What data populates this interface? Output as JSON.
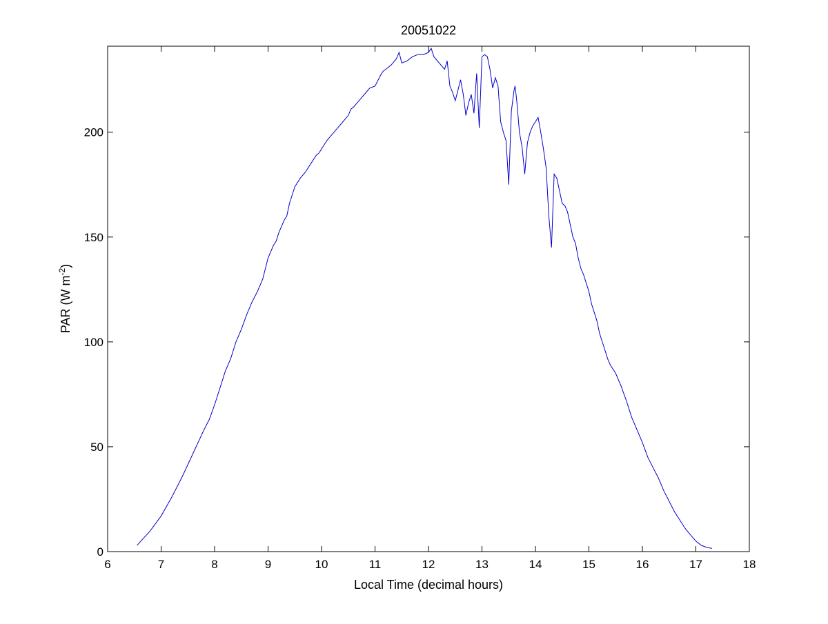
{
  "chart_data": {
    "type": "line",
    "title": "20051022",
    "xlabel": "Local Time (decimal hours)",
    "ylabel_main": "PAR (W m",
    "ylabel_sup": "-2",
    "ylabel_close": ")",
    "xlim": [
      6,
      18
    ],
    "ylim": [
      0,
      241
    ],
    "xticks": [
      6,
      7,
      8,
      9,
      10,
      11,
      12,
      13,
      14,
      15,
      16,
      17,
      18
    ],
    "xtick_labels": [
      "6",
      "7",
      "8",
      "9",
      "10",
      "11",
      "12",
      "13",
      "14",
      "15",
      "16",
      "17",
      "18"
    ],
    "yticks": [
      0,
      50,
      100,
      150,
      200
    ],
    "ytick_labels": [
      "0",
      "50",
      "100",
      "150",
      "200"
    ],
    "grid": false,
    "line_color": "#0000cc",
    "series": [
      {
        "x": [
          6.55,
          6.8,
          7.0,
          7.2,
          7.4,
          7.6,
          7.8,
          7.9,
          8.0,
          8.1,
          8.2,
          8.3,
          8.4,
          8.5,
          8.6,
          8.7,
          8.8,
          8.9,
          9.0,
          9.1,
          9.15,
          9.2,
          9.25,
          9.3,
          9.35,
          9.4,
          9.45,
          9.5,
          9.6,
          9.7,
          9.8,
          9.9,
          9.95,
          10.0,
          10.1,
          10.2,
          10.3,
          10.4,
          10.5,
          10.55,
          10.6,
          10.7,
          10.8,
          10.9,
          11.0,
          11.1,
          11.15,
          11.2,
          11.3,
          11.4,
          11.45,
          11.5,
          11.6,
          11.7,
          11.8,
          11.9,
          12.0,
          12.05,
          12.1,
          12.2,
          12.3,
          12.35,
          12.4,
          12.45,
          12.5,
          12.6,
          12.65,
          12.7,
          12.75,
          12.8,
          12.85,
          12.9,
          12.95,
          13.0,
          13.05,
          13.1,
          13.15,
          13.2,
          13.25,
          13.3,
          13.35,
          13.4,
          13.45,
          13.5,
          13.55,
          13.6,
          13.62,
          13.65,
          13.7,
          13.75,
          13.8,
          13.85,
          13.9,
          13.95,
          14.0,
          14.05,
          14.1,
          14.15,
          14.2,
          14.25,
          14.3,
          14.35,
          14.4,
          14.45,
          14.5,
          14.55,
          14.6,
          14.65,
          14.7,
          14.75,
          14.8,
          14.85,
          14.9,
          14.95,
          15.0,
          15.05,
          15.1,
          15.15,
          15.2,
          15.25,
          15.3,
          15.35,
          15.4,
          15.45,
          15.5,
          15.6,
          15.7,
          15.8,
          15.9,
          16.0,
          16.1,
          16.2,
          16.3,
          16.4,
          16.5,
          16.6,
          16.7,
          16.8,
          16.9,
          17.0,
          17.1,
          17.2,
          17.3
        ],
        "y": [
          3,
          10,
          17,
          26,
          36,
          47,
          58,
          63,
          70,
          78,
          86,
          92,
          100,
          106,
          113,
          119,
          124,
          130,
          140,
          146,
          148,
          152,
          155,
          158,
          160,
          166,
          170,
          174,
          178,
          181,
          185,
          189,
          190,
          192,
          196,
          199,
          202,
          205,
          208,
          211,
          212,
          215,
          218,
          221,
          222,
          227,
          229,
          230,
          232,
          235,
          238,
          233,
          234,
          236,
          237,
          237,
          238,
          240,
          236,
          233,
          230,
          234,
          222,
          219,
          215,
          225,
          218,
          208,
          214,
          218,
          209,
          228,
          202,
          236,
          237,
          236,
          230,
          221,
          226,
          222,
          205,
          200,
          196,
          175,
          210,
          220,
          222,
          215,
          200,
          193,
          180,
          195,
          200,
          203,
          205,
          207,
          200,
          192,
          183,
          160,
          145,
          180,
          178,
          172,
          166,
          165,
          162,
          156,
          150,
          147,
          140,
          135,
          132,
          128,
          124,
          118,
          114,
          110,
          104,
          100,
          96,
          92,
          89,
          87,
          85,
          79,
          72,
          64,
          58,
          52,
          45,
          40,
          35,
          29,
          24,
          19,
          15,
          11,
          8,
          5,
          3,
          2,
          1.5
        ]
      }
    ]
  }
}
